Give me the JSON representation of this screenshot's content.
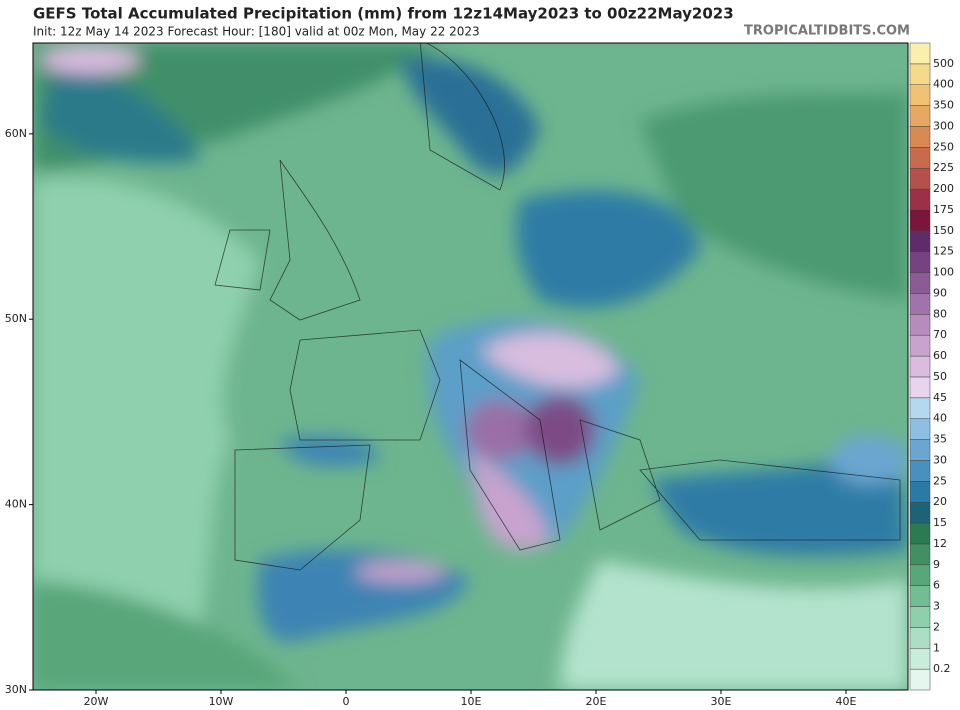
{
  "header": {
    "title": "GEFS Total Accumulated Precipitation (mm) from 12z14May2023 to 00z22May2023",
    "subtitle": "Init: 12z May 14 2023   Forecast Hour: [180]   valid at 00z Mon, May 22 2023",
    "source": "TROPICALTIDBITS.COM"
  },
  "map": {
    "lat_ticks": [
      {
        "value": 60,
        "label": "60N"
      },
      {
        "value": 50,
        "label": "50N"
      },
      {
        "value": 40,
        "label": "40N"
      },
      {
        "value": 30,
        "label": "30N"
      }
    ],
    "lon_ticks": [
      {
        "value": -20,
        "label": "20W"
      },
      {
        "value": -10,
        "label": "10W"
      },
      {
        "value": 0,
        "label": "0"
      },
      {
        "value": 10,
        "label": "10E"
      },
      {
        "value": 20,
        "label": "20E"
      },
      {
        "value": 30,
        "label": "30E"
      },
      {
        "value": 40,
        "label": "40E"
      }
    ]
  },
  "legend": {
    "levels": [
      0.2,
      1,
      2,
      3,
      6,
      9,
      12,
      15,
      20,
      25,
      30,
      35,
      40,
      45,
      50,
      60,
      70,
      80,
      90,
      100,
      125,
      150,
      175,
      200,
      225,
      250,
      300,
      350,
      400,
      500
    ],
    "colors": [
      "#e4f6ee",
      "#c9ecdb",
      "#acdec4",
      "#8fcfab",
      "#72bd92",
      "#58a67a",
      "#418f63",
      "#2b7a52",
      "#1d6378",
      "#2d79a6",
      "#4a90bf",
      "#6aa6d0",
      "#8cbfe2",
      "#b3d8ef",
      "#e8d4ee",
      "#d9bcdf",
      "#c8a3ce",
      "#b78bbe",
      "#a273aa",
      "#8c5a95",
      "#76427f",
      "#5f2c69",
      "#7b1539",
      "#9c3048",
      "#b6504a",
      "#c86b4c",
      "#d98a52",
      "#e6a862",
      "#f0c274",
      "#f6da8c",
      "#fbefad"
    ]
  }
}
